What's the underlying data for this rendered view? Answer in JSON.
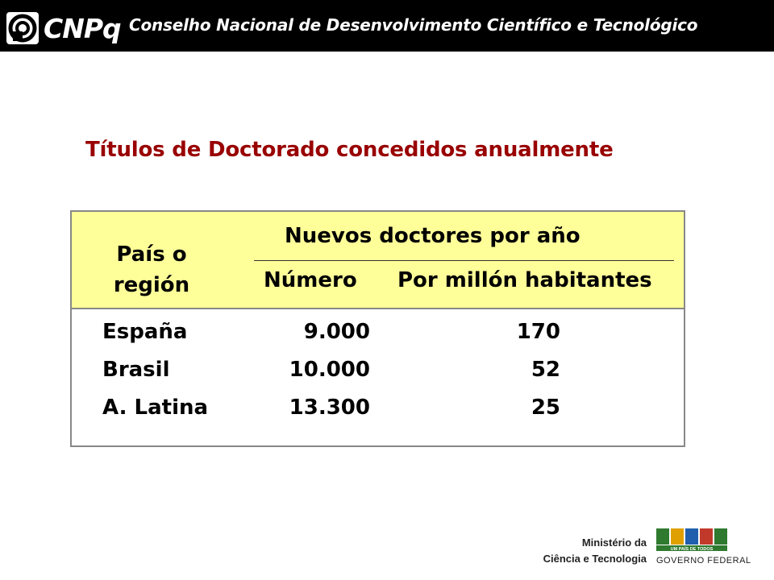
{
  "header": {
    "logo_text": "CNPq",
    "org_name": "Conselho Nacional de Desenvolvimento Científico e Tecnológico"
  },
  "title": "Títulos de Doctorado concedidos anualmente",
  "table": {
    "col_country_line1": "País o",
    "col_country_line2": "región",
    "group_header": "Nuevos doctores por año",
    "col_number": "Número",
    "col_per_million": "Por millón habitantes",
    "rows": [
      {
        "country": "España",
        "number": "9.000",
        "per_million": "170"
      },
      {
        "country": "Brasil",
        "number": "10.000",
        "per_million": "52"
      },
      {
        "country": "A. Latina",
        "number": "13.300",
        "per_million": "25"
      }
    ]
  },
  "footer": {
    "ministry_line1": "Ministério da",
    "ministry_line2": "Ciência e Tecnologia",
    "brasil_tagline": "UM PAÍS DE TODOS",
    "gov_label": "GOVERNO FEDERAL"
  },
  "colors": {
    "header_bg": "#000000",
    "title_color": "#990000",
    "table_header_bg": "#ffff99"
  },
  "icons": [
    "cnpq-logo-icon",
    "brasil-logo-icon"
  ]
}
